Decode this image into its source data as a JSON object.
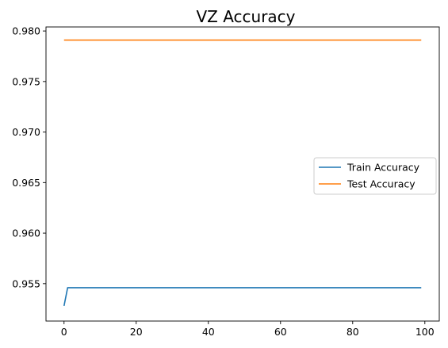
{
  "chart_data": {
    "type": "line",
    "title": "VZ Accuracy",
    "xlabel": "",
    "ylabel": "",
    "xlim": [
      -5,
      104
    ],
    "ylim": [
      0.9513,
      0.9804
    ],
    "xticks": [
      0,
      20,
      40,
      60,
      80,
      100
    ],
    "xtick_labels": [
      "0",
      "20",
      "40",
      "60",
      "80",
      "100"
    ],
    "yticks": [
      0.955,
      0.96,
      0.965,
      0.97,
      0.975,
      0.98
    ],
    "ytick_labels": [
      "0.955",
      "0.960",
      "0.965",
      "0.970",
      "0.975",
      "0.980"
    ],
    "grid": false,
    "legend_position": "center-right",
    "series": [
      {
        "name": "Train Accuracy",
        "color": "#1f77b4",
        "x": [
          0,
          1,
          99
        ],
        "y": [
          0.9528,
          0.9546,
          0.9546
        ]
      },
      {
        "name": "Test Accuracy",
        "color": "#ff7f0e",
        "x": [
          0,
          99
        ],
        "y": [
          0.9791,
          0.9791
        ]
      }
    ]
  }
}
